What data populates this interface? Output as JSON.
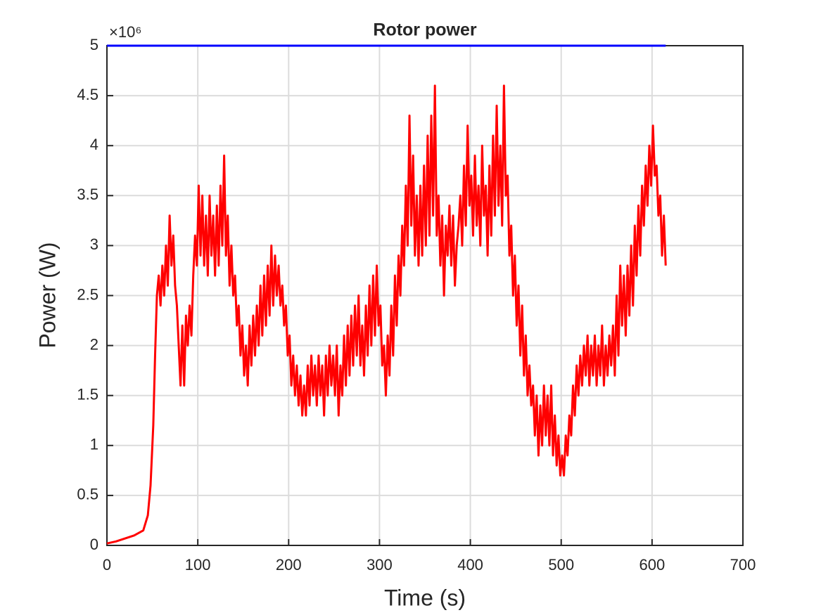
{
  "chart_data": {
    "type": "line",
    "title": "Rotor power",
    "x_label": "Time (s)",
    "y_label": "Power (W)",
    "y_multiplier": "×10⁶",
    "xlim": [
      0,
      700
    ],
    "xticks": [
      0,
      100,
      200,
      300,
      400,
      500,
      600,
      700
    ],
    "ylim": [
      0,
      5
    ],
    "yticks": [
      0,
      0.5,
      1,
      1.5,
      2,
      2.5,
      3,
      3.5,
      4,
      4.5,
      5
    ],
    "grid": true,
    "series": [
      {
        "color": "#ff0000",
        "x": [
          0,
          10,
          20,
          30,
          40,
          45,
          48,
          51,
          53,
          55,
          57,
          59,
          61,
          63,
          65,
          67,
          69,
          71,
          73,
          75,
          77,
          79,
          81,
          83,
          85,
          87,
          89,
          91,
          93,
          95,
          97,
          99,
          101,
          103,
          105,
          107,
          109,
          111,
          113,
          115,
          117,
          119,
          121,
          123,
          125,
          127,
          129,
          131,
          133,
          135,
          137,
          139,
          141,
          143,
          145,
          147,
          149,
          151,
          153,
          155,
          157,
          159,
          161,
          163,
          165,
          167,
          169,
          171,
          173,
          175,
          177,
          179,
          181,
          183,
          185,
          187,
          189,
          191,
          193,
          195,
          197,
          199,
          201,
          203,
          205,
          207,
          209,
          211,
          213,
          215,
          217,
          219,
          221,
          223,
          225,
          227,
          229,
          231,
          233,
          235,
          237,
          239,
          241,
          243,
          245,
          247,
          249,
          251,
          253,
          255,
          257,
          259,
          261,
          263,
          265,
          267,
          269,
          271,
          273,
          275,
          277,
          279,
          281,
          283,
          285,
          287,
          289,
          291,
          293,
          295,
          297,
          299,
          301,
          303,
          305,
          307,
          309,
          311,
          313,
          315,
          317,
          319,
          321,
          323,
          325,
          327,
          329,
          331,
          333,
          335,
          337,
          339,
          341,
          343,
          345,
          347,
          349,
          351,
          353,
          355,
          357,
          359,
          361,
          363,
          365,
          367,
          369,
          371,
          373,
          375,
          377,
          379,
          381,
          383,
          385,
          387,
          389,
          391,
          393,
          395,
          397,
          399,
          401,
          403,
          405,
          407,
          409,
          411,
          413,
          415,
          417,
          419,
          421,
          423,
          425,
          427,
          429,
          431,
          433,
          435,
          437,
          439,
          441,
          443,
          445,
          447,
          449,
          451,
          453,
          455,
          457,
          459,
          461,
          463,
          465,
          467,
          469,
          471,
          473,
          475,
          477,
          479,
          481,
          483,
          485,
          487,
          489,
          491,
          493,
          495,
          497,
          499,
          501,
          503,
          505,
          507,
          509,
          511,
          513,
          515,
          517,
          519,
          521,
          523,
          525,
          527,
          529,
          531,
          533,
          535,
          537,
          539,
          541,
          543,
          545,
          547,
          549,
          551,
          553,
          555,
          557,
          559,
          561,
          563,
          565,
          567,
          569,
          571,
          573,
          575,
          577,
          579,
          581,
          583,
          585,
          587,
          589,
          591,
          593,
          595,
          597,
          599,
          601,
          603,
          605,
          607,
          609,
          611,
          613,
          615
        ],
        "values": [
          0.02,
          0.04,
          0.07,
          0.1,
          0.15,
          0.3,
          0.6,
          1.2,
          1.9,
          2.5,
          2.7,
          2.4,
          2.8,
          2.5,
          3.0,
          2.6,
          3.3,
          2.8,
          3.1,
          2.6,
          2.4,
          2.0,
          1.6,
          2.2,
          1.6,
          2.3,
          2.0,
          2.4,
          2.1,
          2.7,
          3.1,
          2.8,
          3.6,
          2.9,
          3.5,
          2.8,
          3.3,
          2.7,
          3.5,
          2.9,
          3.3,
          2.7,
          3.4,
          2.8,
          3.6,
          3.0,
          3.9,
          2.9,
          3.3,
          2.6,
          3.0,
          2.5,
          2.7,
          2.2,
          2.4,
          1.9,
          2.2,
          1.7,
          2.0,
          1.6,
          2.2,
          1.8,
          2.3,
          1.9,
          2.4,
          2.0,
          2.6,
          2.1,
          2.7,
          2.2,
          2.8,
          2.3,
          3.0,
          2.4,
          2.9,
          2.5,
          2.8,
          2.4,
          2.6,
          2.2,
          2.4,
          1.9,
          2.1,
          1.6,
          1.9,
          1.5,
          1.8,
          1.4,
          1.7,
          1.3,
          1.6,
          1.3,
          1.8,
          1.4,
          1.9,
          1.5,
          1.8,
          1.4,
          1.9,
          1.5,
          1.8,
          1.3,
          1.9,
          1.5,
          2.0,
          1.6,
          1.9,
          1.5,
          2.0,
          1.3,
          1.8,
          1.5,
          2.1,
          1.6,
          2.2,
          1.7,
          2.3,
          1.8,
          2.4,
          1.9,
          2.5,
          1.8,
          2.2,
          1.7,
          2.4,
          1.9,
          2.6,
          2.0,
          2.7,
          2.1,
          2.8,
          2.2,
          2.4,
          1.8,
          2.0,
          1.5,
          2.1,
          1.7,
          2.4,
          1.9,
          2.7,
          2.2,
          2.9,
          2.5,
          3.2,
          2.8,
          3.6,
          3.0,
          4.3,
          3.2,
          3.9,
          2.9,
          3.5,
          2.8,
          3.6,
          2.9,
          3.8,
          3.0,
          4.1,
          3.1,
          4.3,
          3.3,
          4.6,
          3.1,
          3.5,
          2.8,
          3.3,
          2.5,
          3.2,
          2.9,
          3.4,
          2.8,
          3.3,
          2.6,
          3.0,
          3.2,
          3.5,
          3.0,
          3.8,
          3.2,
          4.2,
          3.4,
          3.7,
          3.1,
          3.9,
          3.2,
          3.6,
          3.0,
          4.0,
          3.3,
          3.6,
          2.9,
          3.8,
          3.1,
          4.1,
          3.3,
          4.4,
          3.4,
          4.0,
          3.2,
          4.6,
          3.5,
          3.7,
          2.9,
          3.2,
          2.5,
          2.9,
          2.2,
          2.6,
          1.9,
          2.4,
          1.7,
          2.1,
          1.5,
          1.8,
          1.4,
          1.6,
          1.1,
          1.5,
          0.9,
          1.4,
          1.0,
          1.6,
          1.1,
          1.5,
          1.0,
          1.6,
          0.9,
          1.3,
          0.8,
          1.1,
          0.7,
          0.9,
          0.7,
          1.1,
          0.9,
          1.3,
          1.1,
          1.6,
          1.3,
          1.8,
          1.5,
          1.9,
          1.6,
          2.0,
          1.7,
          2.1,
          1.6,
          2.0,
          1.7,
          2.1,
          1.6,
          2.0,
          1.7,
          2.2,
          1.6,
          2.0,
          1.7,
          2.1,
          1.8,
          2.2,
          1.7,
          2.5,
          1.9,
          2.8,
          2.2,
          2.7,
          2.1,
          2.8,
          2.3,
          3.0,
          2.4,
          3.2,
          2.7,
          3.4,
          2.9,
          3.6,
          3.2,
          3.8,
          3.4,
          4.0,
          3.6,
          4.2,
          3.7,
          3.8,
          3.3,
          3.5,
          2.9,
          3.3,
          2.8
        ]
      },
      {
        "color": "#0000ff",
        "x": [
          0,
          615
        ],
        "values": [
          5,
          5
        ]
      }
    ]
  }
}
